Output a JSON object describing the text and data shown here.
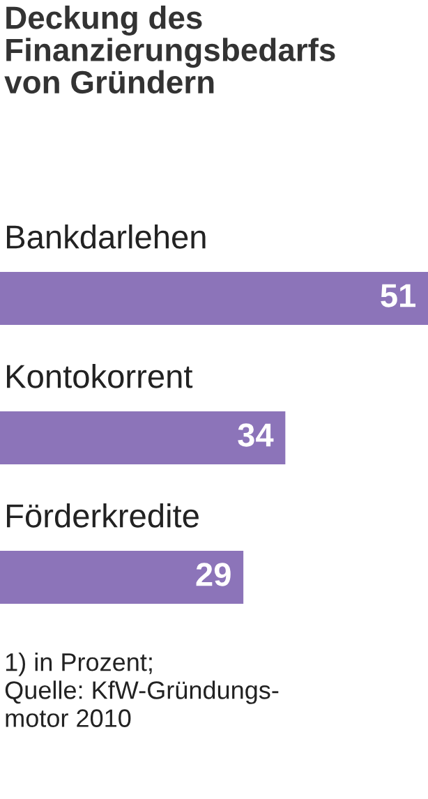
{
  "chart_data": {
    "type": "bar",
    "orientation": "horizontal",
    "title": "Deckung des\nFinanzierungsbedarfs\nvon Gründern",
    "categories": [
      "Bankdarlehen",
      "Kontokorrent",
      "Förderkredite"
    ],
    "values": [
      51,
      34,
      29
    ],
    "color": "#8c74b9",
    "data_labels": true,
    "annotations": [
      "1) in Prozent;\nQuelle: KfW-Gründungs-\nmotor 2010"
    ]
  }
}
